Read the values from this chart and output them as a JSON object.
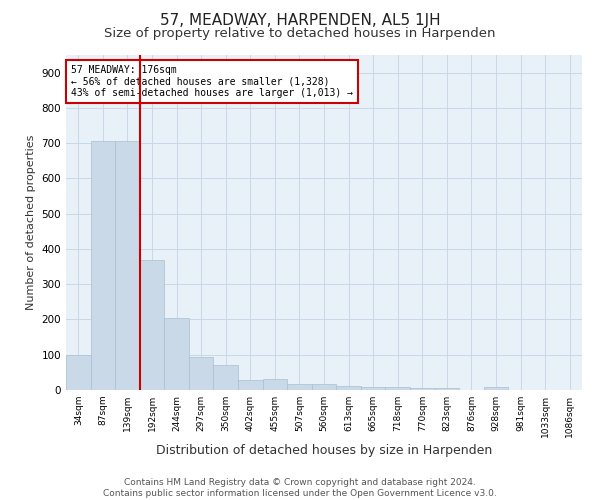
{
  "title": "57, MEADWAY, HARPENDEN, AL5 1JH",
  "subtitle": "Size of property relative to detached houses in Harpenden",
  "xlabel": "Distribution of detached houses by size in Harpenden",
  "ylabel": "Number of detached properties",
  "categories": [
    "34sqm",
    "87sqm",
    "139sqm",
    "192sqm",
    "244sqm",
    "297sqm",
    "350sqm",
    "402sqm",
    "455sqm",
    "507sqm",
    "560sqm",
    "613sqm",
    "665sqm",
    "718sqm",
    "770sqm",
    "823sqm",
    "876sqm",
    "928sqm",
    "981sqm",
    "1033sqm",
    "1086sqm"
  ],
  "values": [
    100,
    707,
    707,
    370,
    205,
    95,
    70,
    28,
    30,
    18,
    18,
    10,
    8,
    8,
    5,
    5,
    0,
    8,
    0,
    0,
    0
  ],
  "bar_color": "#c9d9e8",
  "bar_edge_color": "#a8c0d4",
  "vline_x_index": 2.5,
  "vline_color": "#cc0000",
  "annotation_text": "57 MEADWAY: 176sqm\n← 56% of detached houses are smaller (1,328)\n43% of semi-detached houses are larger (1,013) →",
  "annotation_box_color": "#ffffff",
  "annotation_box_edge": "#cc0000",
  "grid_color": "#c8d8e8",
  "bg_color": "#e8f0f8",
  "ylim": [
    0,
    950
  ],
  "yticks": [
    0,
    100,
    200,
    300,
    400,
    500,
    600,
    700,
    800,
    900
  ],
  "footer": "Contains HM Land Registry data © Crown copyright and database right 2024.\nContains public sector information licensed under the Open Government Licence v3.0.",
  "title_fontsize": 11,
  "subtitle_fontsize": 9.5,
  "xlabel_fontsize": 9,
  "ylabel_fontsize": 8,
  "footer_fontsize": 6.5
}
